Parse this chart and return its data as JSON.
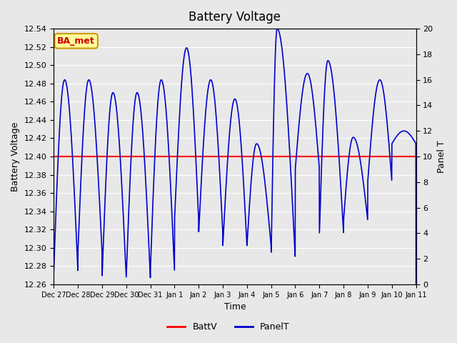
{
  "title": "Battery Voltage",
  "xlabel": "Time",
  "ylabel_left": "Battery Voltage",
  "ylabel_right": "Panel T",
  "ylim_left": [
    12.26,
    12.54
  ],
  "ylim_right": [
    0,
    20
  ],
  "yticks_left": [
    12.26,
    12.28,
    12.3,
    12.32,
    12.34,
    12.36,
    12.38,
    12.4,
    12.42,
    12.44,
    12.46,
    12.48,
    12.5,
    12.52,
    12.54
  ],
  "yticks_right": [
    0,
    2,
    4,
    6,
    8,
    10,
    12,
    14,
    16,
    18,
    20
  ],
  "batt_v": 12.4,
  "batt_color": "#ff0000",
  "panel_color": "#0000cc",
  "bg_color": "#e8e8e8",
  "watermark_text": "BA_met",
  "watermark_bg": "#ffff99",
  "watermark_border": "#cc9900",
  "watermark_text_color": "#cc0000",
  "legend_entries": [
    "BattV",
    "PanelT"
  ],
  "xtick_labels": [
    "Dec 27",
    "Dec 28",
    "Dec 29",
    "Dec 30",
    "Dec 31",
    "Jan 1",
    "Jan 2",
    "Jan 3",
    "Jan 4",
    "Jan 5",
    "Jan 6",
    "Jan 7",
    "Jan 8",
    "Jan 9",
    "Jan 10",
    "Jan 11"
  ],
  "xtick_positions": [
    0,
    1,
    2,
    3,
    4,
    5,
    6,
    7,
    8,
    9,
    10,
    11,
    12,
    13,
    14,
    15
  ],
  "xlim": [
    0,
    15
  ]
}
